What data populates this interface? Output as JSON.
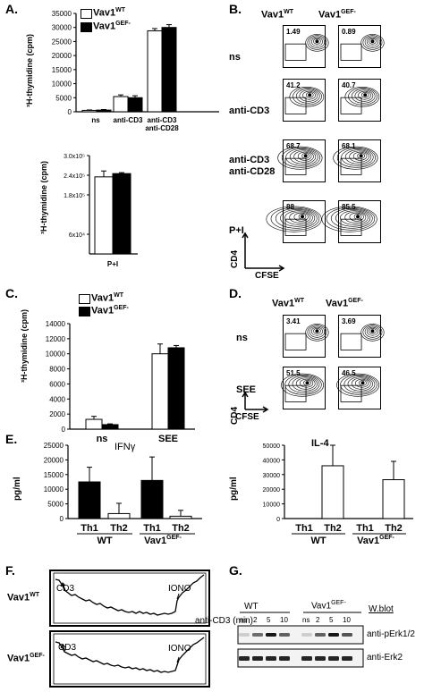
{
  "panels": {
    "A": "A.",
    "B": "B.",
    "C": "C.",
    "D": "D.",
    "E": "E.",
    "F": "F.",
    "G": "G."
  },
  "genotypes": {
    "wt": "Vav1",
    "wt_sup": "WT",
    "gef": "Vav1",
    "gef_sup": "GEF-"
  },
  "panel_a": {
    "ylabel": "³H-thymidine (cpm)",
    "ylabel2": "³H-thymidine (cpm)",
    "top_yticks": [
      "0",
      "5000",
      "10000",
      "15000",
      "20000",
      "25000",
      "30000",
      "35000"
    ],
    "top_categories": [
      "ns",
      "anti-CD3",
      "anti-CD3",
      "anti-CD28"
    ],
    "bottom_yticks": [
      "6x10⁴",
      "1.8x10⁵",
      "2.4x10⁵",
      "3.0x10⁵"
    ],
    "bottom_category": "P+I"
  },
  "panel_b": {
    "rows": [
      "ns",
      "anti-CD3",
      "anti-CD3",
      "anti-CD28",
      "P+I"
    ],
    "values_wt": [
      "1.49",
      "41.2",
      "68.7",
      "88"
    ],
    "values_gef": [
      "0.89",
      "40.7",
      "68.1",
      "85.5"
    ],
    "yaxis": "CD4",
    "xaxis": "CFSE"
  },
  "panel_c": {
    "ylabel": "³H-thymidine (cpm)",
    "yticks": [
      "0",
      "2000",
      "4000",
      "6000",
      "8000",
      "10000",
      "12000",
      "14000"
    ],
    "categories": [
      "ns",
      "SEE"
    ]
  },
  "panel_d": {
    "rows": [
      "ns",
      "SEE"
    ],
    "values_wt": [
      "3.41",
      "51.5"
    ],
    "values_gef": [
      "3.69",
      "46.5"
    ],
    "yaxis": "CD4",
    "xaxis": "CFSE"
  },
  "panel_e": {
    "ifn_title": "IFNγ",
    "il4_title": "IL-4",
    "ylabel": "pg/ml",
    "ifn_yticks": [
      "0",
      "5000",
      "10000",
      "15000",
      "20000",
      "25000"
    ],
    "il4_yticks": [
      "0",
      "10000",
      "20000",
      "30000",
      "40000",
      "50000"
    ],
    "categories": [
      "Th1",
      "Th2",
      "Th1",
      "Th2"
    ],
    "groups": [
      "WT",
      "Vav1"
    ],
    "group_sup": "GEF-"
  },
  "panel_f": {
    "cd3": "CD3",
    "iono": "IONO"
  },
  "panel_g": {
    "row_label": "anti-CD3 (min)",
    "wblot": "W.blot",
    "lanes": [
      "ns",
      "2",
      "5",
      "10",
      "ns",
      "2",
      "5",
      "10"
    ],
    "groups": [
      "WT",
      "Vav1"
    ],
    "group_sup": "GEF-",
    "antibodies": [
      "anti-pErk1/2",
      "anti-Erk2"
    ]
  },
  "chart_data": [
    {
      "type": "bar",
      "panel": "A-top",
      "categories": [
        "ns",
        "anti-CD3",
        "anti-CD3 anti-CD28"
      ],
      "series": [
        {
          "name": "Vav1WT",
          "values": [
            500,
            5400,
            28800
          ],
          "errors": [
            150,
            600,
            800
          ]
        },
        {
          "name": "Vav1GEF-",
          "values": [
            600,
            5000,
            30000
          ],
          "errors": [
            200,
            700,
            1000
          ]
        }
      ],
      "ylabel": "³H-thymidine (cpm)",
      "ylim": [
        0,
        35000
      ]
    },
    {
      "type": "bar",
      "panel": "A-bottom",
      "categories": [
        "P+I"
      ],
      "series": [
        {
          "name": "Vav1WT",
          "values": [
            235000
          ],
          "errors": [
            18000
          ]
        },
        {
          "name": "Vav1GEF-",
          "values": [
            245000
          ],
          "errors": [
            3000
          ]
        }
      ],
      "ylabel": "³H-thymidine (cpm)",
      "ylim": [
        0,
        300000
      ]
    },
    {
      "type": "bar",
      "panel": "C",
      "categories": [
        "ns",
        "SEE"
      ],
      "series": [
        {
          "name": "Vav1WT",
          "values": [
            1300,
            10000
          ],
          "errors": [
            400,
            1300
          ]
        },
        {
          "name": "Vav1GEF-",
          "values": [
            600,
            10800
          ],
          "errors": [
            100,
            300
          ]
        }
      ],
      "ylabel": "³H-thymidine (cpm)",
      "ylim": [
        0,
        14000
      ]
    },
    {
      "type": "bar",
      "panel": "E-IFNg",
      "categories": [
        "WT Th1",
        "WT Th2",
        "Vav1GEF- Th1",
        "Vav1GEF- Th2"
      ],
      "values": [
        12500,
        1700,
        13000,
        800
      ],
      "errors": [
        5000,
        3500,
        8000,
        2000
      ],
      "fill": [
        "black",
        "white",
        "black",
        "white"
      ],
      "ylabel": "pg/ml",
      "ylim": [
        0,
        25000
      ]
    },
    {
      "type": "bar",
      "panel": "E-IL4",
      "categories": [
        "WT Th1",
        "WT Th2",
        "Vav1GEF- Th1",
        "Vav1GEF- Th2"
      ],
      "values": [
        0,
        36000,
        0,
        26500
      ],
      "errors": [
        0,
        14000,
        0,
        12500
      ],
      "fill": [
        "white",
        "white",
        "white",
        "white"
      ],
      "ylabel": "pg/ml",
      "ylim": [
        0,
        50000
      ]
    }
  ]
}
